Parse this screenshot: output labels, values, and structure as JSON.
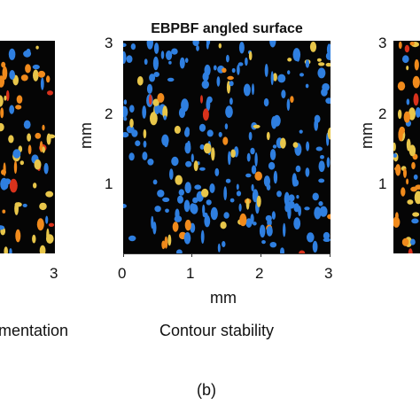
{
  "figure": {
    "center_title": "EBPBF angled surface",
    "center_xlabel": "mm",
    "center_ylabel": "mm",
    "right_ylabel": "mm",
    "left_caption": "mentation",
    "center_caption": "Contour stability",
    "sub_label": "(b)"
  },
  "left_panel": {
    "x_tick_right": "3"
  },
  "center_panel": {
    "x_ticks": [
      "0",
      "1",
      "2",
      "3"
    ],
    "y_ticks": [
      "3",
      "2",
      "1"
    ]
  },
  "right_panel": {
    "y_ticks": [
      "3",
      "2",
      "1"
    ]
  },
  "colors": {
    "background": "#050505",
    "blue": "#2f7fe0",
    "orange": "#f08a1c",
    "yellow": "#e8c64a",
    "red": "#d8321c"
  }
}
